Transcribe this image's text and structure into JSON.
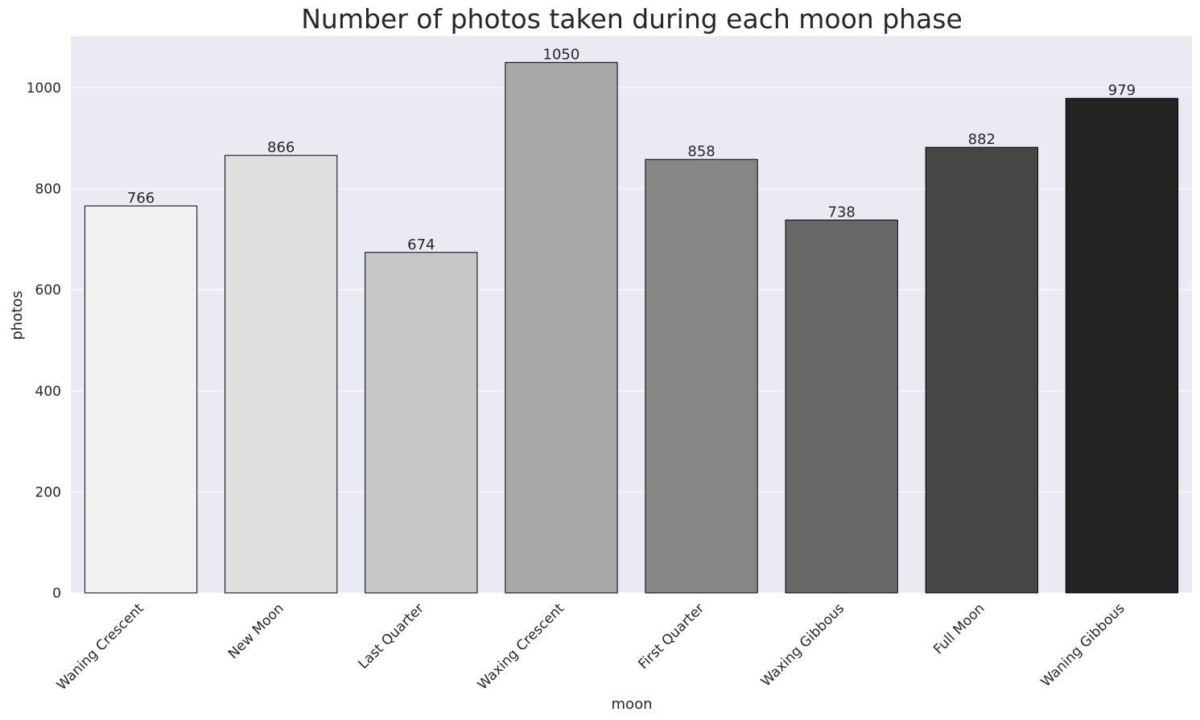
{
  "chart_data": {
    "type": "bar",
    "title": "Number of photos taken during each moon phase",
    "xlabel": "moon",
    "ylabel": "photos",
    "categories": [
      "Waning Crescent",
      "New Moon",
      "Last Quarter",
      "Waxing Crescent",
      "First Quarter",
      "Waxing Gibbous",
      "Full Moon",
      "Waning Gibbous"
    ],
    "values": [
      766,
      866,
      674,
      1050,
      858,
      738,
      882,
      979
    ],
    "ylim": [
      0,
      1102
    ],
    "yticks": [
      0,
      200,
      400,
      600,
      800,
      1000
    ],
    "bar_colors": [
      "#f1f1f2",
      "#dfdfdf",
      "#c6c6c6",
      "#a8a8a8",
      "#878787",
      "#686868",
      "#464646",
      "#232323"
    ],
    "grid": true,
    "background": "#eaeaf2"
  }
}
